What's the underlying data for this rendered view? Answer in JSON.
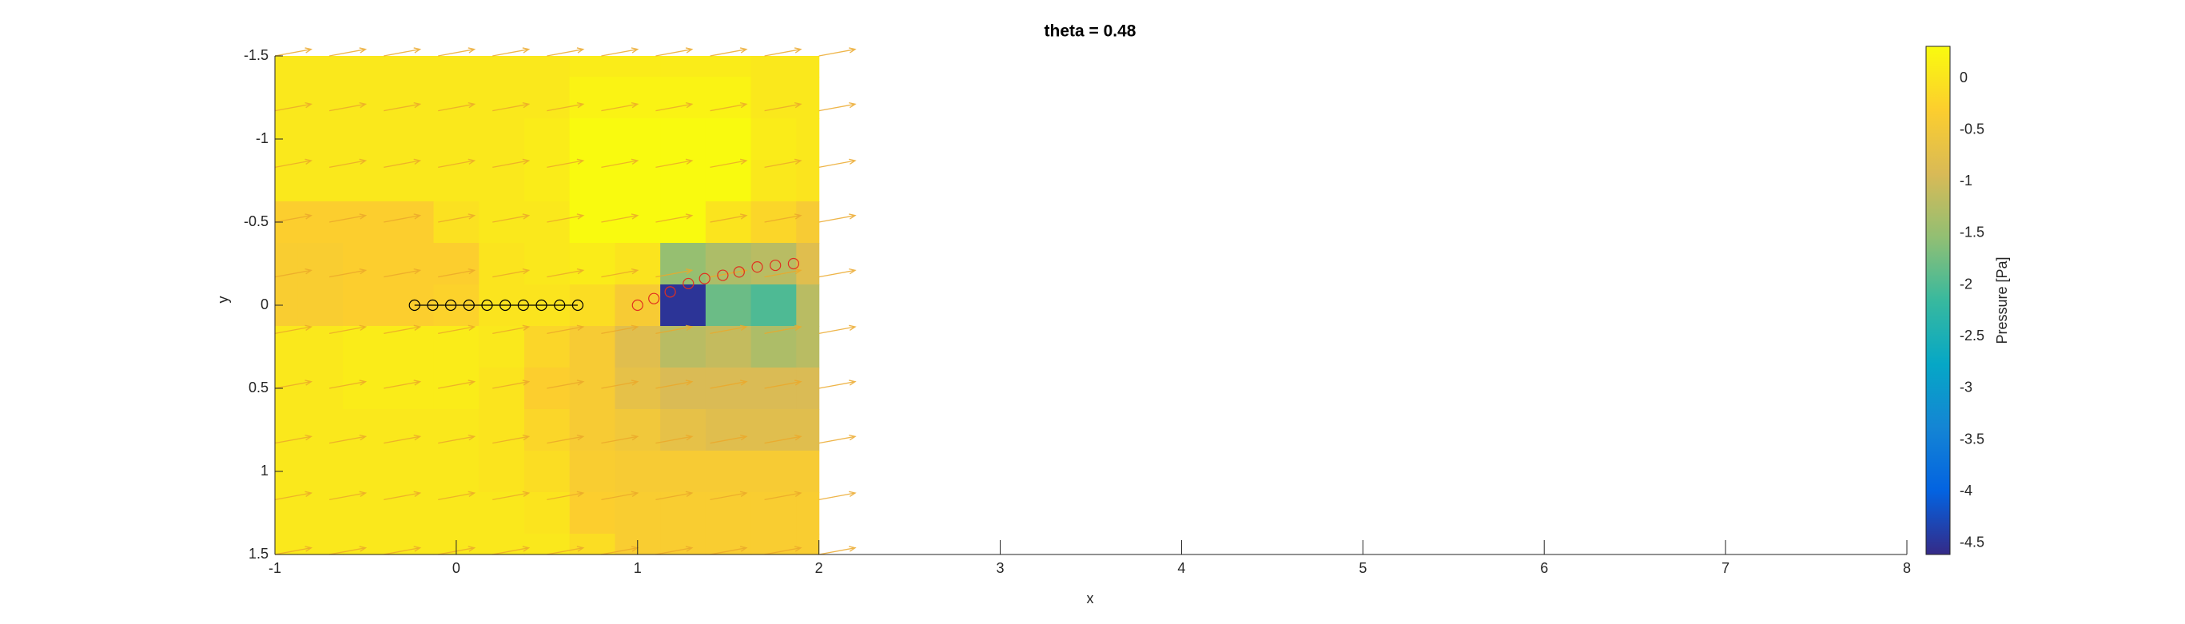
{
  "chart_data": {
    "type": "contour",
    "title": "theta = 0.48",
    "xlabel": "x",
    "ylabel": "y",
    "xlim": [
      -1,
      8
    ],
    "ylim": [
      -1.5,
      1.5
    ],
    "ydir": "reverse",
    "xticks": [
      -1,
      0,
      1,
      2,
      3,
      4,
      5,
      6,
      7,
      8
    ],
    "yticks": [
      -1.5,
      -1,
      -0.5,
      0,
      0.5,
      1,
      1.5
    ],
    "grid_x": [
      -1,
      -0.75,
      -0.5,
      -0.25,
      0,
      0.25,
      0.5,
      0.75,
      1,
      1.25,
      1.5,
      1.75,
      2
    ],
    "grid_y": [
      -1.5,
      -1.25,
      -1,
      -0.75,
      -0.5,
      -0.25,
      0,
      0.25,
      0.5,
      0.75,
      1,
      1.25,
      1.5
    ],
    "z": [
      [
        0.05,
        0.05,
        0.05,
        0.05,
        0.05,
        0.05,
        0.05,
        0.1,
        0.1,
        0.1,
        0.1,
        0.05,
        0.05
      ],
      [
        0.05,
        0.05,
        0.05,
        0.05,
        0.05,
        0.05,
        0.05,
        0.2,
        0.2,
        0.2,
        0.2,
        0.05,
        0.05
      ],
      [
        0.05,
        0.05,
        0.05,
        0.05,
        0.05,
        0.05,
        0.1,
        0.3,
        0.3,
        0.3,
        0.3,
        0.1,
        0.05
      ],
      [
        0.05,
        0.05,
        0.05,
        0.05,
        0.05,
        0.05,
        0.1,
        0.3,
        0.3,
        0.3,
        0.3,
        0.05,
        0
      ],
      [
        -0.3,
        -0.3,
        -0.3,
        -0.3,
        -0.05,
        0.05,
        0.05,
        0.3,
        0.3,
        0.3,
        0,
        -0.2,
        -0.4
      ],
      [
        -0.35,
        -0.35,
        -0.3,
        -0.3,
        -0.3,
        0,
        0.05,
        0.1,
        0,
        -1.5,
        -1.3,
        -1.2,
        -0.8
      ],
      [
        -0.35,
        -0.35,
        -0.3,
        -0.3,
        -0.25,
        0,
        0,
        -0.1,
        -0.4,
        -4.5,
        -1.8,
        -2,
        -1.2
      ],
      [
        0.05,
        0.05,
        0.1,
        0.1,
        0.1,
        0.05,
        -0.2,
        -0.4,
        -0.8,
        -1.2,
        -1.1,
        -1.3,
        -1.2
      ],
      [
        0.05,
        0.05,
        0.1,
        0.1,
        0.1,
        0,
        -0.3,
        -0.4,
        -0.7,
        -0.9,
        -0.9,
        -0.9,
        -0.9
      ],
      [
        0.05,
        0.05,
        0.05,
        0.05,
        0.05,
        0,
        -0.2,
        -0.4,
        -0.5,
        -0.7,
        -0.8,
        -0.8,
        -0.8
      ],
      [
        0.05,
        0.05,
        0.05,
        0.05,
        0.05,
        0,
        -0.1,
        -0.35,
        -0.4,
        -0.4,
        -0.4,
        -0.4,
        -0.4
      ],
      [
        0.05,
        0.05,
        0.05,
        0.05,
        0.05,
        0.05,
        0,
        -0.3,
        -0.35,
        -0.35,
        -0.35,
        -0.35,
        -0.35
      ],
      [
        0.05,
        0.05,
        0.05,
        0.05,
        0.05,
        0.05,
        0.05,
        -0.1,
        -0.35,
        -0.35,
        -0.35,
        -0.35,
        -0.35
      ]
    ],
    "clim": [
      -4.61,
      0.31
    ],
    "colorbar_label": "Pressure [Pa]",
    "colorbar_ticks": [
      0,
      -0.5,
      -1,
      -1.5,
      -2,
      -2.5,
      -3,
      -3.5,
      -4,
      -4.5
    ],
    "quiver": {
      "color": "#eba82a",
      "x": [
        -1,
        -0.7,
        -0.4,
        -0.1,
        0.2,
        0.5,
        0.8,
        1.1,
        1.4,
        1.7,
        2
      ],
      "y": [
        -1.5,
        -1.17,
        -0.83,
        -0.5,
        -0.17,
        0.17,
        0.5,
        0.83,
        1.17,
        1.5
      ],
      "u": 0.2,
      "v": -0.04
    },
    "series": [
      {
        "color": "#000000",
        "line": true,
        "x": [
          -0.23,
          -0.13,
          -0.03,
          0.07,
          0.17,
          0.27,
          0.37,
          0.47,
          0.57,
          0.67
        ],
        "y": [
          0,
          0,
          0,
          0,
          0,
          0,
          0,
          0,
          0,
          0
        ]
      },
      {
        "color": "#e03020",
        "line": false,
        "x": [
          1.0,
          1.09,
          1.18,
          1.28,
          1.37,
          1.47,
          1.56,
          1.66,
          1.76,
          1.86
        ],
        "y": [
          0,
          -0.04,
          -0.08,
          -0.13,
          -0.16,
          -0.18,
          -0.2,
          -0.23,
          -0.24,
          -0.25
        ]
      }
    ]
  }
}
